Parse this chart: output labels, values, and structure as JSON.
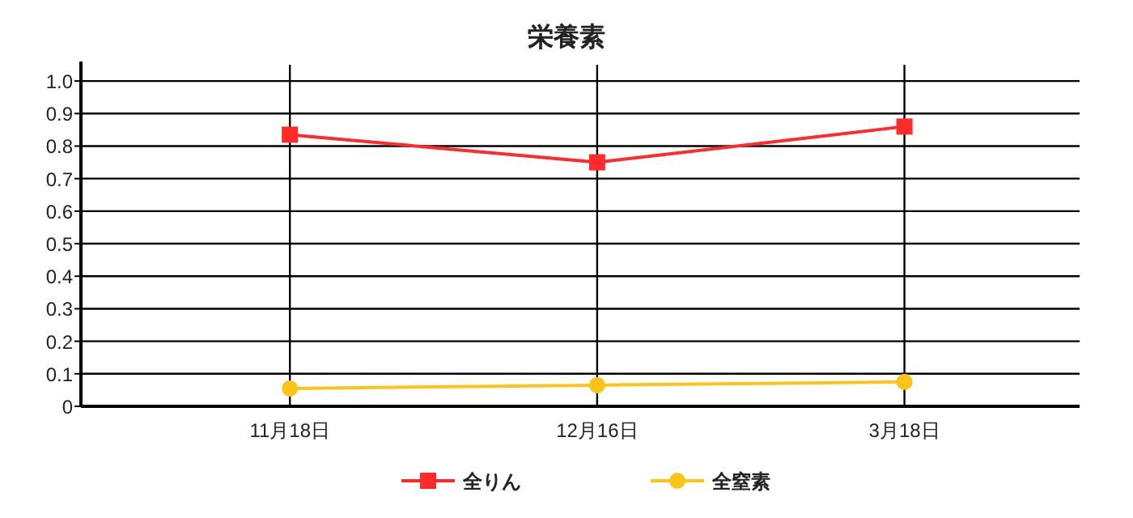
{
  "chart_data": {
    "type": "line",
    "title": "栄養素",
    "categories": [
      "11月18日",
      "12月16日",
      "3月18日"
    ],
    "series": [
      {
        "name": "全りん",
        "color": "#ff2a2a",
        "marker": "square",
        "values": [
          0.835,
          0.75,
          0.86
        ]
      },
      {
        "name": "全窒素",
        "color": "#fcc419",
        "marker": "circle",
        "values": [
          0.055,
          0.065,
          0.075
        ]
      }
    ],
    "ylim": [
      0,
      1.05
    ],
    "yticks": [
      0,
      0.1,
      0.2,
      0.3,
      0.4,
      0.5,
      0.6,
      0.7,
      0.8,
      0.9,
      {
        "value": 1.0,
        "label": "1.0"
      }
    ],
    "grid": true,
    "legend": "bottom",
    "line_style": "solid"
  }
}
